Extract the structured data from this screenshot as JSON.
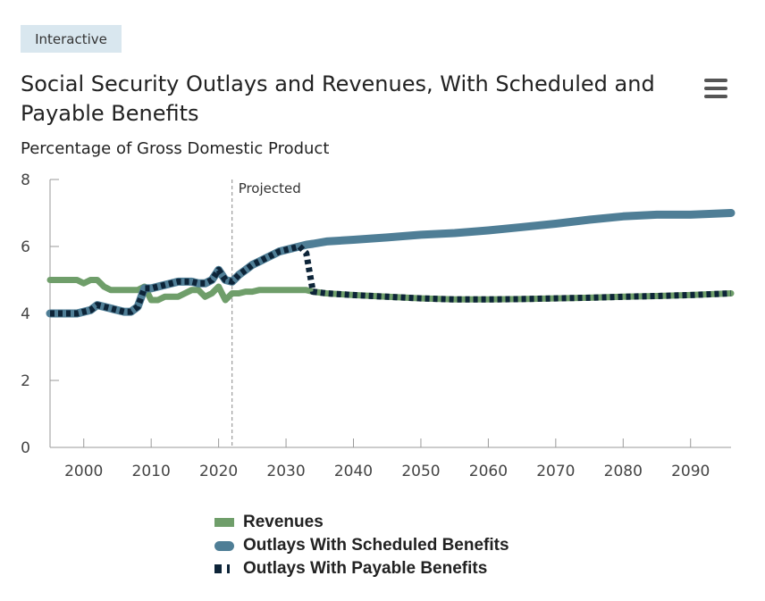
{
  "badge": "Interactive",
  "title": "Social Security Outlays and Revenues, With Scheduled and Payable Benefits",
  "subtitle": "Percentage of Gross Domestic Product",
  "colors": {
    "revenues": "#6f9e6a",
    "scheduled": "#4f7e96",
    "payable": "#0d2438",
    "axis": "#9a9a9a",
    "text": "#222222"
  },
  "chart_data": {
    "type": "line",
    "xlim": [
      1995,
      2096
    ],
    "ylim": [
      0,
      8
    ],
    "yticks": [
      0,
      2,
      4,
      6,
      8
    ],
    "xticks": [
      2000,
      2010,
      2020,
      2030,
      2040,
      2050,
      2060,
      2070,
      2080,
      2090
    ],
    "grid": false,
    "legend_position": "bottom",
    "annotation": {
      "label": "Projected",
      "x": 2022
    },
    "series": [
      {
        "name": "Revenues",
        "style": "solid",
        "points": [
          [
            1995,
            5.0
          ],
          [
            1996,
            5.0
          ],
          [
            1997,
            5.0
          ],
          [
            1998,
            5.0
          ],
          [
            1999,
            5.0
          ],
          [
            2000,
            4.9
          ],
          [
            2001,
            5.0
          ],
          [
            2002,
            5.0
          ],
          [
            2003,
            4.8
          ],
          [
            2004,
            4.7
          ],
          [
            2005,
            4.7
          ],
          [
            2006,
            4.7
          ],
          [
            2007,
            4.7
          ],
          [
            2008,
            4.7
          ],
          [
            2009,
            4.8
          ],
          [
            2010,
            4.4
          ],
          [
            2011,
            4.4
          ],
          [
            2012,
            4.5
          ],
          [
            2013,
            4.5
          ],
          [
            2014,
            4.5
          ],
          [
            2015,
            4.6
          ],
          [
            2016,
            4.7
          ],
          [
            2017,
            4.7
          ],
          [
            2018,
            4.5
          ],
          [
            2019,
            4.6
          ],
          [
            2020,
            4.8
          ],
          [
            2021,
            4.4
          ],
          [
            2022,
            4.6
          ],
          [
            2023,
            4.6
          ],
          [
            2024,
            4.65
          ],
          [
            2025,
            4.65
          ],
          [
            2026,
            4.7
          ],
          [
            2027,
            4.7
          ],
          [
            2028,
            4.7
          ],
          [
            2029,
            4.7
          ],
          [
            2030,
            4.7
          ],
          [
            2031,
            4.7
          ],
          [
            2032,
            4.7
          ],
          [
            2033,
            4.7
          ],
          [
            2034,
            4.65
          ],
          [
            2036,
            4.6
          ],
          [
            2040,
            4.55
          ],
          [
            2045,
            4.5
          ],
          [
            2050,
            4.45
          ],
          [
            2055,
            4.42
          ],
          [
            2060,
            4.42
          ],
          [
            2065,
            4.43
          ],
          [
            2070,
            4.45
          ],
          [
            2075,
            4.47
          ],
          [
            2080,
            4.5
          ],
          [
            2085,
            4.52
          ],
          [
            2090,
            4.55
          ],
          [
            2096,
            4.6
          ]
        ]
      },
      {
        "name": "Outlays With Scheduled Benefits",
        "style": "solid-thick",
        "points": [
          [
            1995,
            4.0
          ],
          [
            1996,
            4.0
          ],
          [
            1997,
            4.0
          ],
          [
            1998,
            4.0
          ],
          [
            1999,
            4.0
          ],
          [
            2000,
            4.05
          ],
          [
            2001,
            4.1
          ],
          [
            2002,
            4.25
          ],
          [
            2003,
            4.2
          ],
          [
            2004,
            4.15
          ],
          [
            2005,
            4.1
          ],
          [
            2006,
            4.05
          ],
          [
            2007,
            4.05
          ],
          [
            2008,
            4.2
          ],
          [
            2009,
            4.75
          ],
          [
            2010,
            4.75
          ],
          [
            2011,
            4.8
          ],
          [
            2012,
            4.85
          ],
          [
            2013,
            4.9
          ],
          [
            2014,
            4.95
          ],
          [
            2015,
            4.95
          ],
          [
            2016,
            4.95
          ],
          [
            2017,
            4.9
          ],
          [
            2018,
            4.9
          ],
          [
            2019,
            5.0
          ],
          [
            2020,
            5.3
          ],
          [
            2021,
            5.0
          ],
          [
            2022,
            4.95
          ],
          [
            2023,
            5.15
          ],
          [
            2024,
            5.3
          ],
          [
            2025,
            5.45
          ],
          [
            2026,
            5.55
          ],
          [
            2027,
            5.65
          ],
          [
            2028,
            5.75
          ],
          [
            2029,
            5.85
          ],
          [
            2030,
            5.9
          ],
          [
            2031,
            5.95
          ],
          [
            2032,
            6.0
          ],
          [
            2033,
            6.05
          ],
          [
            2034,
            6.08
          ],
          [
            2036,
            6.15
          ],
          [
            2040,
            6.2
          ],
          [
            2045,
            6.27
          ],
          [
            2050,
            6.35
          ],
          [
            2055,
            6.4
          ],
          [
            2060,
            6.48
          ],
          [
            2065,
            6.58
          ],
          [
            2070,
            6.68
          ],
          [
            2075,
            6.8
          ],
          [
            2080,
            6.9
          ],
          [
            2085,
            6.95
          ],
          [
            2090,
            6.95
          ],
          [
            2096,
            7.0
          ]
        ]
      },
      {
        "name": "Outlays With Payable Benefits",
        "style": "dotted",
        "points": [
          [
            1995,
            4.0
          ],
          [
            1996,
            4.0
          ],
          [
            1997,
            4.0
          ],
          [
            1998,
            4.0
          ],
          [
            1999,
            4.0
          ],
          [
            2000,
            4.05
          ],
          [
            2001,
            4.1
          ],
          [
            2002,
            4.25
          ],
          [
            2003,
            4.2
          ],
          [
            2004,
            4.15
          ],
          [
            2005,
            4.1
          ],
          [
            2006,
            4.05
          ],
          [
            2007,
            4.05
          ],
          [
            2008,
            4.2
          ],
          [
            2009,
            4.75
          ],
          [
            2010,
            4.75
          ],
          [
            2011,
            4.8
          ],
          [
            2012,
            4.85
          ],
          [
            2013,
            4.9
          ],
          [
            2014,
            4.95
          ],
          [
            2015,
            4.95
          ],
          [
            2016,
            4.95
          ],
          [
            2017,
            4.9
          ],
          [
            2018,
            4.9
          ],
          [
            2019,
            5.0
          ],
          [
            2020,
            5.3
          ],
          [
            2021,
            5.0
          ],
          [
            2022,
            4.95
          ],
          [
            2023,
            5.15
          ],
          [
            2024,
            5.3
          ],
          [
            2025,
            5.45
          ],
          [
            2026,
            5.55
          ],
          [
            2027,
            5.65
          ],
          [
            2028,
            5.75
          ],
          [
            2029,
            5.85
          ],
          [
            2030,
            5.9
          ],
          [
            2031,
            5.95
          ],
          [
            2032,
            6.0
          ],
          [
            2033,
            5.8
          ],
          [
            2034,
            4.65
          ],
          [
            2036,
            4.6
          ],
          [
            2040,
            4.55
          ],
          [
            2045,
            4.5
          ],
          [
            2050,
            4.45
          ],
          [
            2055,
            4.42
          ],
          [
            2060,
            4.42
          ],
          [
            2065,
            4.43
          ],
          [
            2070,
            4.45
          ],
          [
            2075,
            4.47
          ],
          [
            2080,
            4.5
          ],
          [
            2085,
            4.52
          ],
          [
            2090,
            4.55
          ],
          [
            2096,
            4.6
          ]
        ]
      }
    ]
  },
  "legend": [
    {
      "label": "Revenues"
    },
    {
      "label": "Outlays With Scheduled Benefits"
    },
    {
      "label": "Outlays With Payable Benefits"
    }
  ]
}
